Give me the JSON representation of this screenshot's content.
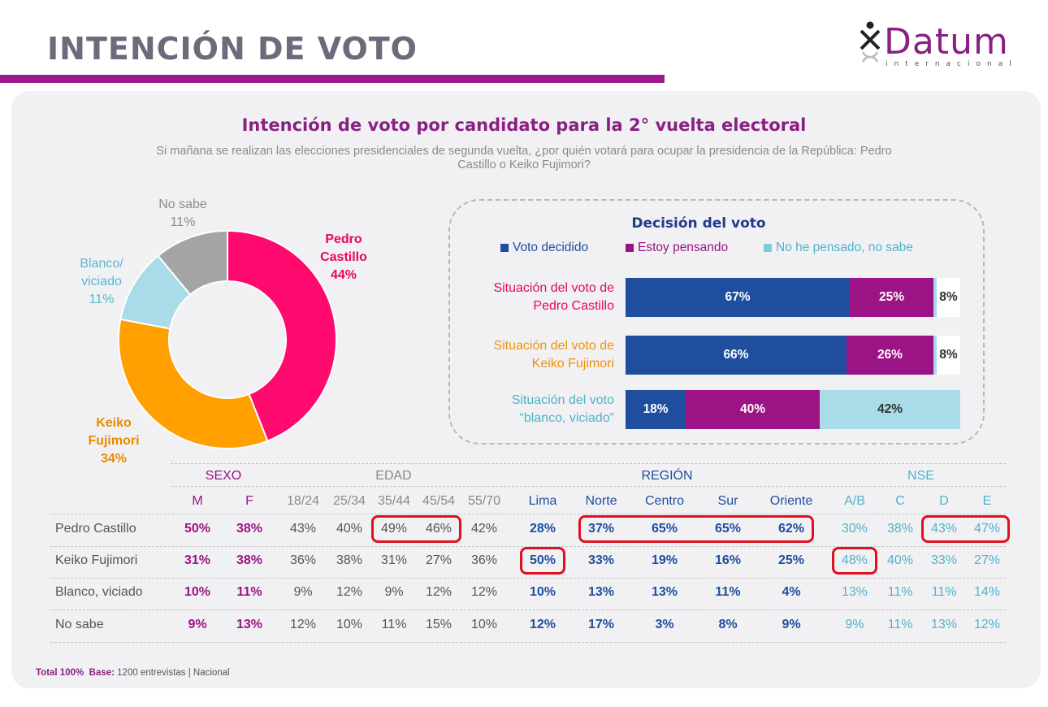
{
  "header": {
    "title": "INTENCIÓN DE VOTO"
  },
  "logo": {
    "word": "Datum",
    "sub": "internacional"
  },
  "colors": {
    "castillo": "#ff0a6e",
    "fujimori": "#ff9f00",
    "blanco": "#a9dbe8",
    "nosabe": "#a4a4a4",
    "decidido": "#1f4e9e",
    "pensando": "#9b1385",
    "noha": "#a9dbe8",
    "purple": "#8a1f84"
  },
  "chart_data": [
    {
      "type": "pie",
      "title": "Intención de voto por candidato para la 2° vuelta electoral",
      "subtitle": "Si mañana se realizan las elecciones presidenciales de segunda vuelta, ¿por quién votará para ocupar la presidencia de la República:  Pedro Castillo o Keiko Fujimori?",
      "slices": [
        {
          "name": "Pedro Castillo",
          "label_lines": [
            "Pedro",
            "Castillo"
          ],
          "value": 44,
          "value_label": "44%"
        },
        {
          "name": "Keiko Fujimori",
          "label_lines": [
            "Keiko",
            "Fujimori"
          ],
          "value": 34,
          "value_label": "34%"
        },
        {
          "name": "Blanco/ viciado",
          "label_lines": [
            "Blanco/",
            "viciado"
          ],
          "value": 11,
          "value_label": "11%"
        },
        {
          "name": "No sabe",
          "label_lines": [
            "No sabe"
          ],
          "value": 11,
          "value_label": "11%"
        }
      ]
    },
    {
      "type": "bar",
      "title": "Decisión del voto",
      "stacked": true,
      "orientation": "horizontal",
      "series_names": [
        "Voto decidido",
        "Estoy pensando",
        "No he pensado, no sabe"
      ],
      "categories": [
        {
          "label_lines": [
            "Situación del voto de",
            "Pedro Castillo"
          ],
          "values": [
            67,
            25,
            8
          ],
          "labels": [
            "67%",
            "25%",
            "8%"
          ]
        },
        {
          "label_lines": [
            "Situación del voto de",
            "Keiko Fujimori"
          ],
          "values": [
            66,
            26,
            8
          ],
          "labels": [
            "66%",
            "26%",
            "8%"
          ]
        },
        {
          "label_lines": [
            "Situación del voto",
            "“blanco, viciado”"
          ],
          "values": [
            18,
            40,
            42
          ],
          "labels": [
            "18%",
            "40%",
            "42%"
          ]
        }
      ]
    },
    {
      "type": "table",
      "groups": [
        {
          "name": "SEXO",
          "cols": [
            "M",
            "F"
          ]
        },
        {
          "name": "EDAD",
          "cols": [
            "18/24",
            "25/34",
            "35/44",
            "45/54",
            "55/70"
          ]
        },
        {
          "name": "REGIÓN",
          "cols": [
            "Lima",
            "Norte",
            "Centro",
            "Sur",
            "Oriente"
          ]
        },
        {
          "name": "NSE",
          "cols": [
            "A/B",
            "C",
            "D",
            "E"
          ]
        }
      ],
      "rows": [
        {
          "name": "Pedro Castillo",
          "values": [
            "50%",
            "38%",
            "43%",
            "40%",
            "49%",
            "46%",
            "42%",
            "28%",
            "37%",
            "65%",
            "65%",
            "62%",
            "30%",
            "38%",
            "43%",
            "47%"
          ]
        },
        {
          "name": "Keiko Fujimori",
          "values": [
            "31%",
            "38%",
            "36%",
            "38%",
            "31%",
            "27%",
            "36%",
            "50%",
            "33%",
            "19%",
            "16%",
            "25%",
            "48%",
            "40%",
            "33%",
            "27%"
          ]
        },
        {
          "name": "Blanco, viciado",
          "values": [
            "10%",
            "11%",
            "9%",
            "12%",
            "9%",
            "12%",
            "12%",
            "10%",
            "13%",
            "13%",
            "11%",
            "4%",
            "13%",
            "11%",
            "11%",
            "14%"
          ]
        },
        {
          "name": "No sabe",
          "values": [
            "9%",
            "13%",
            "12%",
            "10%",
            "11%",
            "15%",
            "10%",
            "12%",
            "17%",
            "3%",
            "8%",
            "9%",
            "9%",
            "11%",
            "13%",
            "12%"
          ]
        }
      ],
      "highlights": [
        {
          "row": 0,
          "cols": [
            4,
            5
          ]
        },
        {
          "row": 0,
          "cols": [
            8,
            9,
            10,
            11
          ]
        },
        {
          "row": 0,
          "cols": [
            14,
            15
          ]
        },
        {
          "row": 1,
          "cols": [
            7
          ]
        },
        {
          "row": 1,
          "cols": [
            12
          ]
        }
      ]
    }
  ],
  "footer": {
    "total": "Total 100%",
    "base_label": "Base:",
    "base_text": " 1200 entrevistas | Nacional"
  }
}
